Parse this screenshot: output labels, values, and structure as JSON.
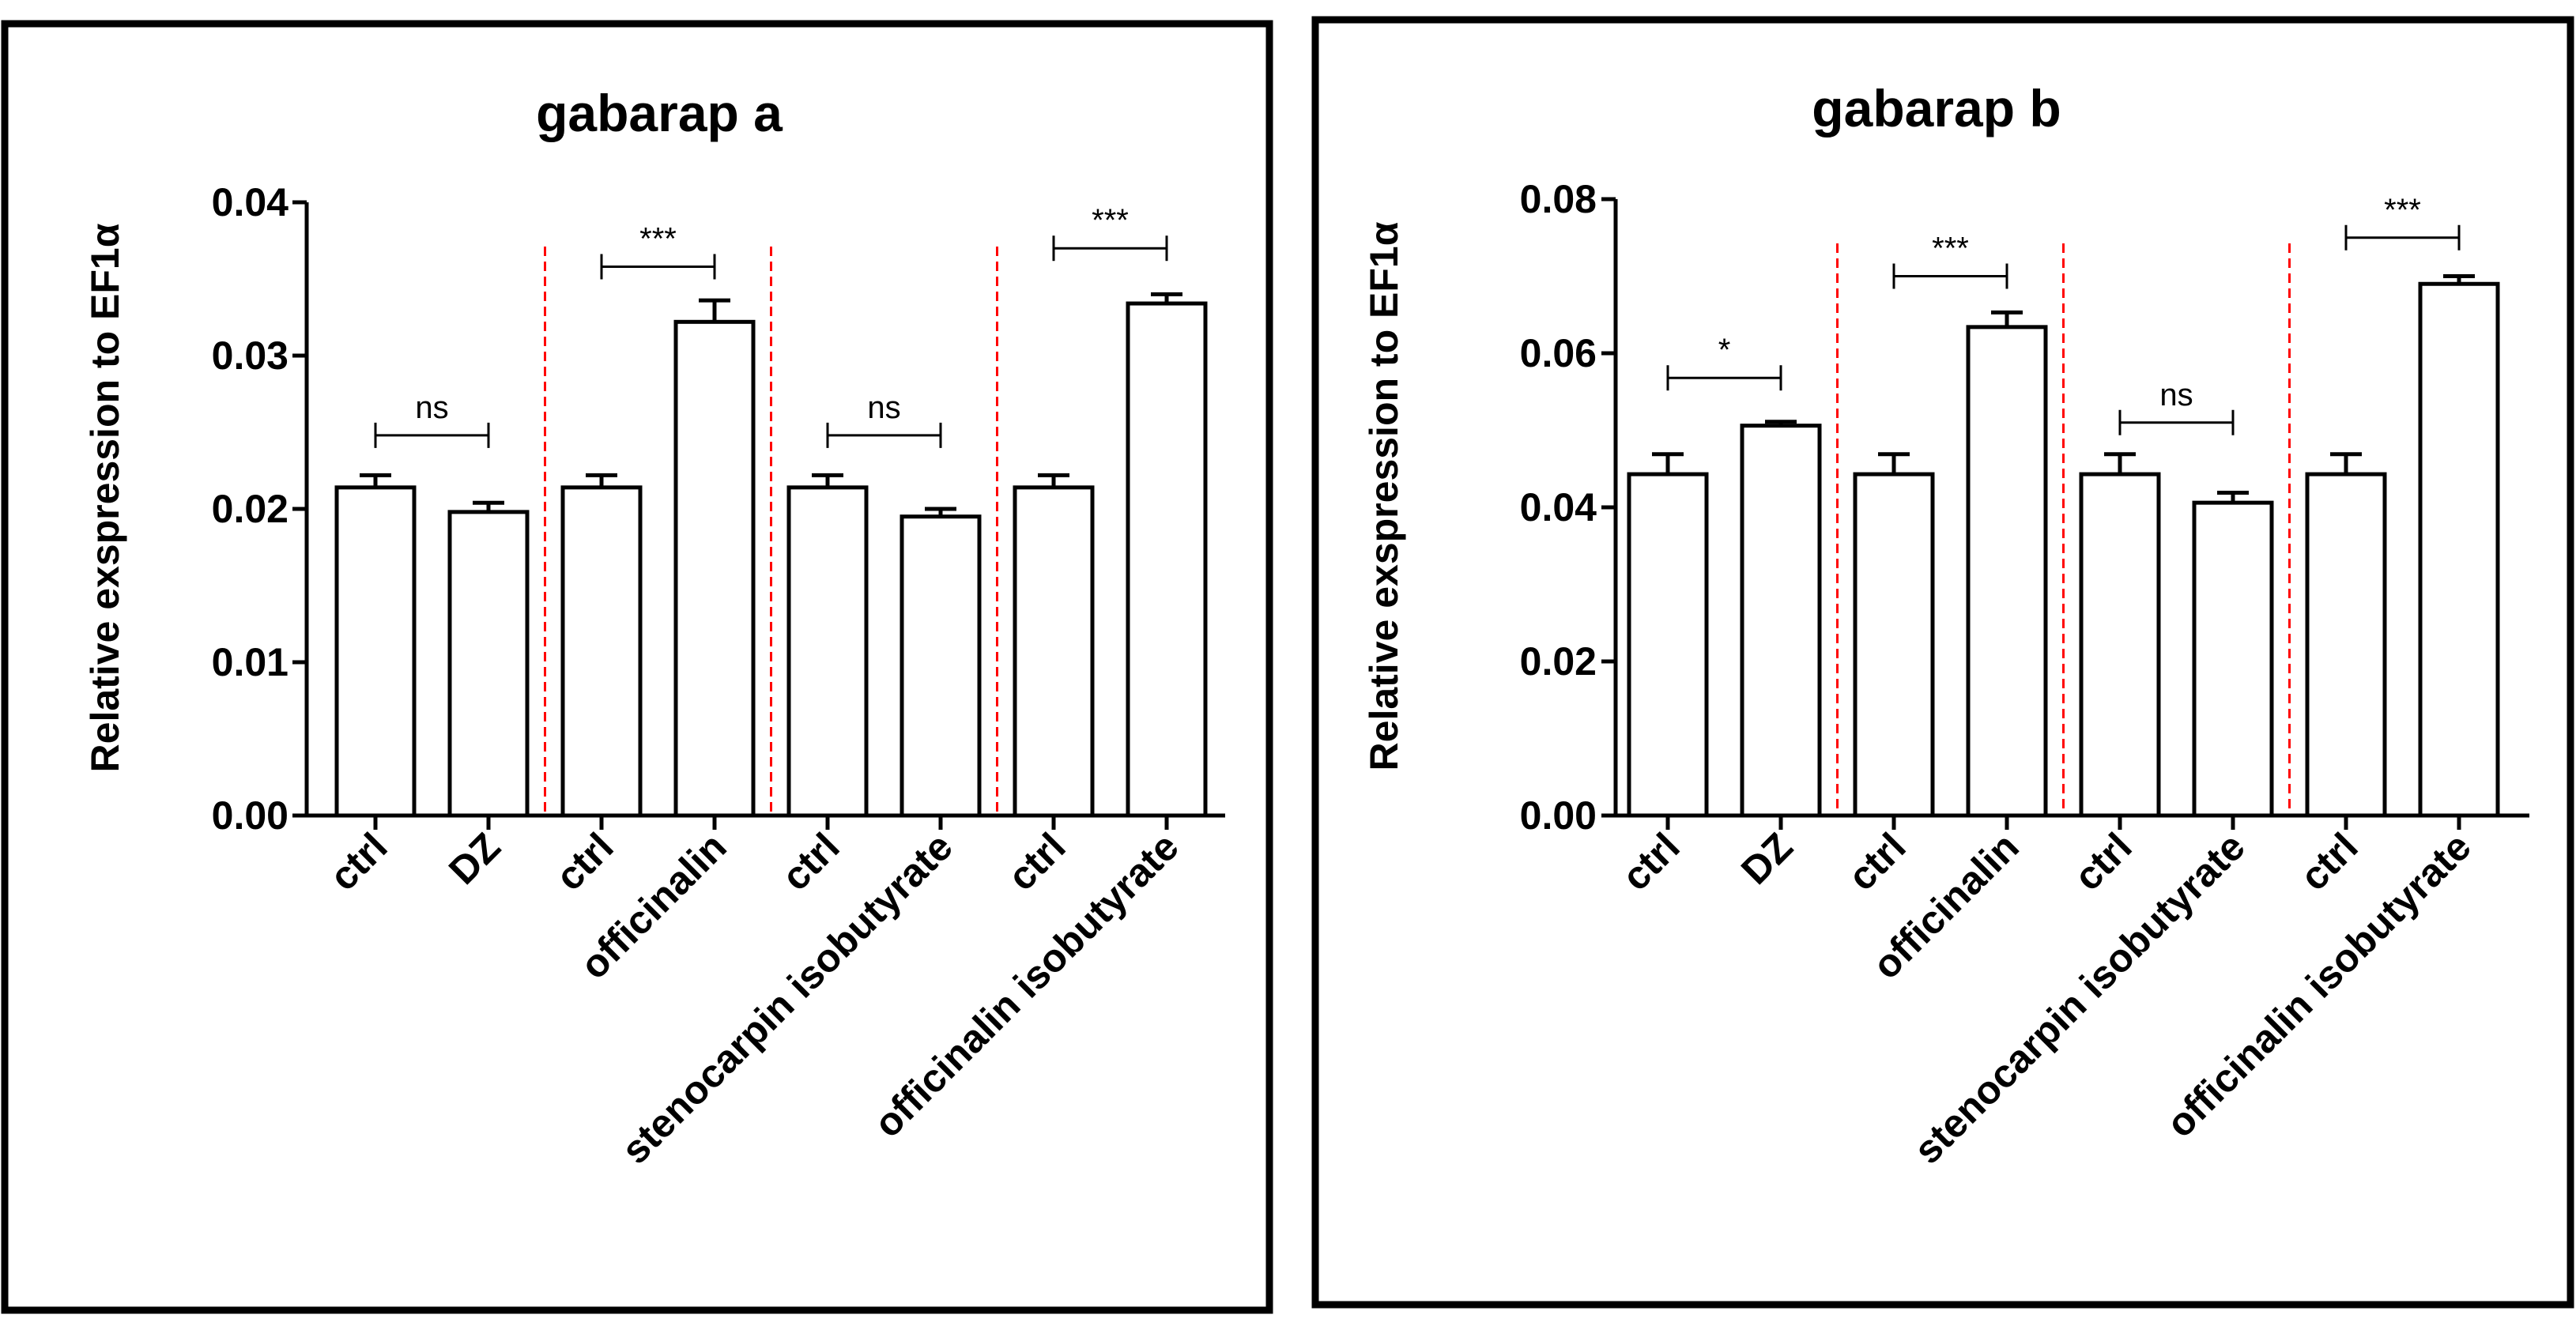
{
  "chart_data": [
    {
      "type": "bar",
      "title": "gabarap a",
      "ylabel": "Relative exspression to EF1α",
      "xlabel": "",
      "ylim": [
        0,
        0.04
      ],
      "yticks": [
        0.0,
        0.01,
        0.02,
        0.03,
        0.04
      ],
      "ytick_labels": [
        "0.00",
        "0.01",
        "0.02",
        "0.03",
        "0.04"
      ],
      "categories": [
        "ctrl",
        "DZ",
        "ctrl",
        "officinalin",
        "ctrl",
        "stenocarpin isobutyrate",
        "ctrl",
        "officinalin isobutyrate"
      ],
      "values": [
        0.0214,
        0.0198,
        0.0214,
        0.0322,
        0.0214,
        0.0195,
        0.0214,
        0.0334
      ],
      "errors": [
        0.0008,
        0.0006,
        0.0008,
        0.0014,
        0.0008,
        0.0005,
        0.0008,
        0.0006
      ],
      "group_separators_after": [
        2,
        4,
        6
      ],
      "significance": [
        {
          "from": 0,
          "to": 1,
          "y": 0.0248,
          "label": "ns"
        },
        {
          "from": 2,
          "to": 3,
          "y": 0.0358,
          "label": "***"
        },
        {
          "from": 4,
          "to": 5,
          "y": 0.0248,
          "label": "ns"
        },
        {
          "from": 6,
          "to": 7,
          "y": 0.037,
          "label": "***"
        }
      ]
    },
    {
      "type": "bar",
      "title": "gabarap b",
      "ylabel": "Relative exspression to EF1α",
      "xlabel": "",
      "ylim": [
        0,
        0.08
      ],
      "yticks": [
        0.0,
        0.02,
        0.04,
        0.06,
        0.08
      ],
      "ytick_labels": [
        "0.00",
        "0.02",
        "0.04",
        "0.06",
        "0.08"
      ],
      "categories": [
        "ctrl",
        "DZ",
        "ctrl",
        "officinalin",
        "ctrl",
        "stenocarpin isobutyrate",
        "ctrl",
        "officinalin isobutyrate"
      ],
      "values": [
        0.0443,
        0.0506,
        0.0443,
        0.0634,
        0.0443,
        0.0406,
        0.0443,
        0.069
      ],
      "errors": [
        0.0026,
        0.0005,
        0.0026,
        0.0019,
        0.0026,
        0.0013,
        0.0026,
        0.001
      ],
      "group_separators_after": [
        2,
        4,
        6
      ],
      "significance": [
        {
          "from": 0,
          "to": 1,
          "y": 0.0568,
          "label": "*"
        },
        {
          "from": 2,
          "to": 3,
          "y": 0.07,
          "label": "***"
        },
        {
          "from": 4,
          "to": 5,
          "y": 0.051,
          "label": "ns"
        },
        {
          "from": 6,
          "to": 7,
          "y": 0.075,
          "label": "***"
        }
      ]
    }
  ]
}
